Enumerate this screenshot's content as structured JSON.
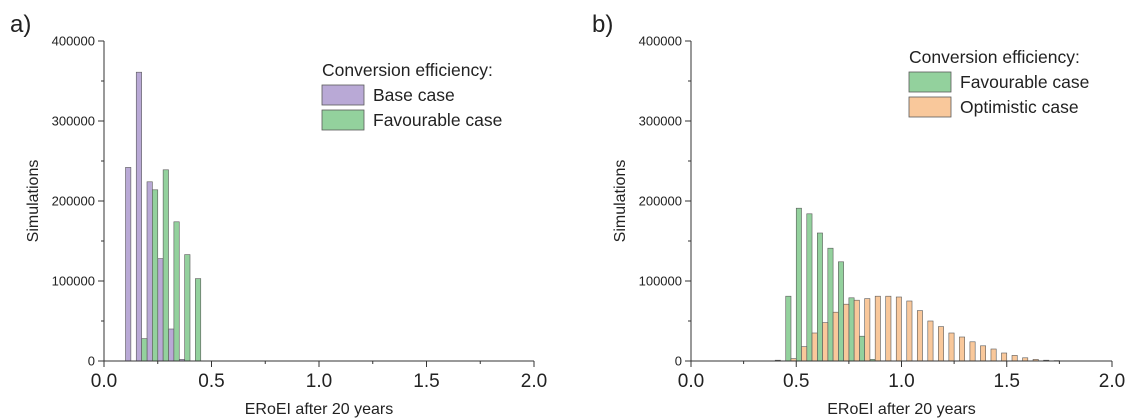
{
  "chart_data": [
    {
      "type": "bar",
      "panel_label": "a)",
      "xlabel": "ERoEI after 20 years",
      "ylabel": "Simulations",
      "xlim": [
        0.0,
        2.0
      ],
      "ylim": [
        0,
        400000
      ],
      "x_ticks": [
        "0.0",
        "0.5",
        "1.0",
        "1.5",
        "2.0"
      ],
      "y_ticks": [
        "0",
        "100000",
        "200000",
        "300000",
        "400000"
      ],
      "legend_title": "Conversion efficiency:",
      "legend_position": "top-right",
      "bin_width": 0.05,
      "series": [
        {
          "name": "Base case",
          "color": "#B9A9D6",
          "x": [
            0.1,
            0.15,
            0.2,
            0.25,
            0.3,
            0.35
          ],
          "values": [
            242000,
            361000,
            224000,
            128000,
            40000,
            2000
          ]
        },
        {
          "name": "Favourable case",
          "color": "#93D19D",
          "x": [
            0.15,
            0.2,
            0.25,
            0.3,
            0.35,
            0.4
          ],
          "values": [
            28000,
            214000,
            239000,
            174000,
            133000,
            103000
          ]
        }
      ]
    },
    {
      "type": "bar",
      "panel_label": "b)",
      "xlabel": "ERoEI after 20 years",
      "ylabel": "Simulations",
      "xlim": [
        0.0,
        2.0
      ],
      "ylim": [
        0,
        400000
      ],
      "x_ticks": [
        "0.0",
        "0.5",
        "1.0",
        "1.5",
        "2.0"
      ],
      "y_ticks": [
        "0",
        "100000",
        "200000",
        "300000",
        "400000"
      ],
      "legend_title": "Conversion efficiency:",
      "legend_position": "top-right",
      "bin_width": 0.05,
      "series": [
        {
          "name": "Favourable case",
          "color": "#93D19D",
          "x": [
            0.4,
            0.45,
            0.5,
            0.55,
            0.6,
            0.65,
            0.7,
            0.75,
            0.8,
            0.85
          ],
          "values": [
            1000,
            81000,
            191000,
            184000,
            160000,
            141000,
            124000,
            79000,
            31000,
            2000
          ]
        },
        {
          "name": "Optimistic case",
          "color": "#F9C89B",
          "x": [
            0.45,
            0.5,
            0.55,
            0.6,
            0.65,
            0.7,
            0.75,
            0.8,
            0.85,
            0.9,
            0.95,
            1.0,
            1.05,
            1.1,
            1.15,
            1.2,
            1.25,
            1.3,
            1.35,
            1.4,
            1.45,
            1.5,
            1.55,
            1.6,
            1.65,
            1.7
          ],
          "values": [
            3000,
            18000,
            35000,
            48000,
            61000,
            71000,
            76000,
            78000,
            81000,
            81000,
            80000,
            75000,
            63000,
            50000,
            43000,
            35000,
            30000,
            24000,
            19000,
            15000,
            10000,
            7000,
            4000,
            2000,
            1000,
            500
          ]
        }
      ]
    }
  ]
}
